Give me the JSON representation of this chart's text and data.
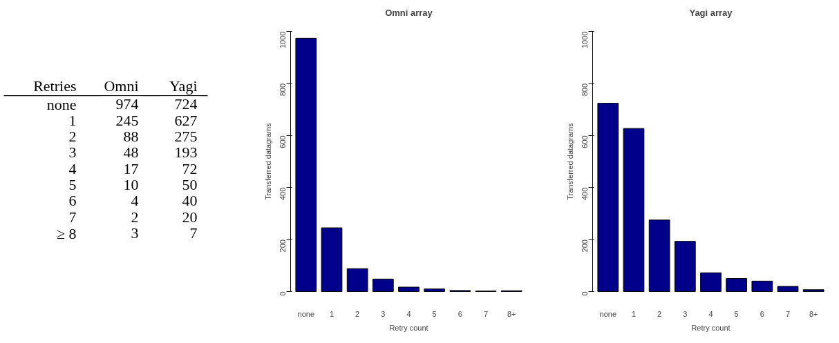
{
  "chart_data": [
    {
      "type": "heatmap",
      "ylabel": "Retries",
      "categories": [
        "Omni",
        "Yagi"
      ],
      "y_categories": [
        "none",
        "1",
        "2",
        "3",
        "4",
        "5",
        "6",
        "7",
        "≥ 8"
      ],
      "cells": [
        [
          974,
          724
        ],
        [
          245,
          627
        ],
        [
          88,
          275
        ],
        [
          48,
          193
        ],
        [
          17,
          72
        ],
        [
          10,
          50
        ],
        [
          4,
          40
        ],
        [
          2,
          20
        ],
        [
          3,
          7
        ]
      ],
      "data_labels": true
    },
    {
      "type": "bar",
      "title": "Omni array",
      "xlabel": "Retry count",
      "ylabel": "Transferred datagrams",
      "categories": [
        "none",
        "1",
        "2",
        "3",
        "4",
        "5",
        "6",
        "7",
        "8+"
      ],
      "values": [
        974,
        245,
        88,
        48,
        17,
        10,
        4,
        2,
        3
      ],
      "color": "#00008b",
      "ylim": [
        0,
        1000
      ],
      "yticks": [
        0,
        200,
        400,
        600,
        800,
        1000
      ],
      "grid": false
    },
    {
      "type": "bar",
      "title": "Yagi array",
      "xlabel": "Retry count",
      "ylabel": "Transferred datagrams",
      "categories": [
        "none",
        "1",
        "2",
        "3",
        "4",
        "5",
        "6",
        "7",
        "8+"
      ],
      "values": [
        724,
        627,
        275,
        193,
        72,
        50,
        40,
        20,
        7
      ],
      "color": "#00008b",
      "ylim": [
        0,
        1000
      ],
      "yticks": [
        0,
        200,
        400,
        600,
        800,
        1000
      ],
      "grid": false
    }
  ]
}
